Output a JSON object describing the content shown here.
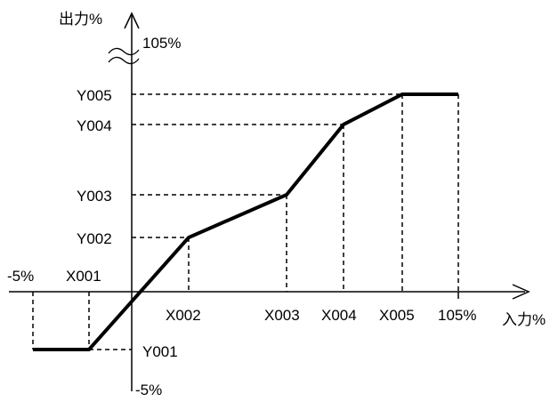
{
  "y_axis": {
    "title": "出力%",
    "top_label": "105%",
    "bottom_label": "-5%"
  },
  "x_axis": {
    "title": "入力%",
    "left_label": "-5%",
    "right_label": "105%"
  },
  "points": [
    {
      "x_label": "X001",
      "y_label": "Y001"
    },
    {
      "x_label": "X002",
      "y_label": "Y002"
    },
    {
      "x_label": "X003",
      "y_label": "Y003"
    },
    {
      "x_label": "X004",
      "y_label": "Y004"
    },
    {
      "x_label": "X005",
      "y_label": "Y005"
    }
  ]
}
